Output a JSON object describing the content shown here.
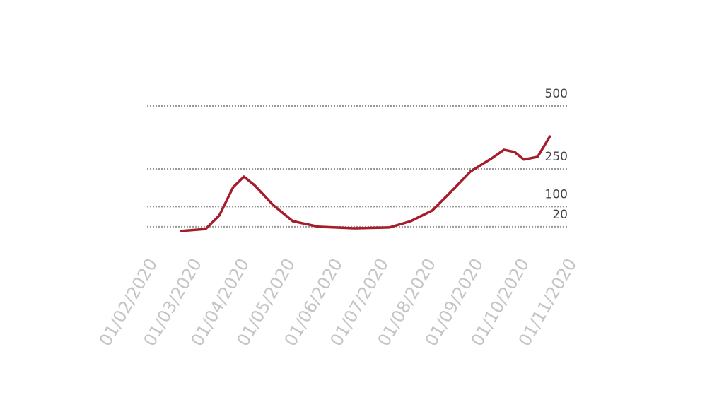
{
  "chart_data": {
    "type": "line",
    "x": [
      "20/02/2020",
      "07/03/2020",
      "16/03/2020",
      "25/03/2020",
      "01/04/2020",
      "08/04/2020",
      "20/04/2020",
      "03/05/2020",
      "20/05/2020",
      "12/06/2020",
      "05/07/2020",
      "19/07/2020",
      "02/08/2020",
      "15/08/2020",
      "27/08/2020",
      "10/09/2020",
      "18/09/2020",
      "25/09/2020",
      "01/10/2020",
      "10/10/2020",
      "18/10/2020"
    ],
    "series": [
      {
        "color": "#a51c2a",
        "values": [
          3,
          11,
          65,
          177,
          219,
          185,
          107,
          42,
          20,
          14,
          17,
          42,
          84,
          163,
          239,
          292,
          326,
          317,
          287,
          298,
          379
        ]
      }
    ],
    "xlim": [
      "01/02/2020",
      "01/11/2020"
    ],
    "xticks": [
      "01/02/2020",
      "01/03/2020",
      "01/04/2020",
      "01/05/2020",
      "01/06/2020",
      "01/07/2020",
      "01/08/2020",
      "01/09/2020",
      "01/10/2020",
      "01/11/2020"
    ],
    "ylim": [
      0,
      500
    ],
    "yticks": [
      20,
      100,
      250,
      500
    ],
    "grid": true
  }
}
